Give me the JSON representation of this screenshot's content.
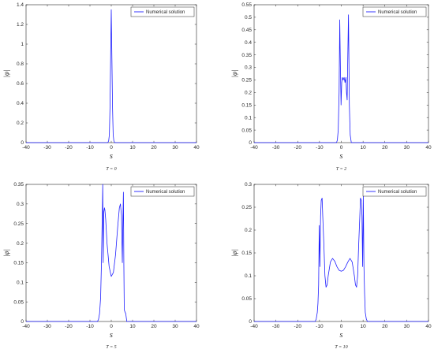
{
  "chart_data": [
    {
      "type": "line",
      "caption": "T = 0",
      "xlabel": "s",
      "ylabel": "|φ|",
      "xlim": [
        -40,
        40
      ],
      "ylim": [
        0,
        1.4
      ],
      "xticks": [
        "-40",
        "-30",
        "-20",
        "-10",
        "0",
        "10",
        "20",
        "30",
        "40"
      ],
      "yticks": [
        "0",
        "0.2",
        "0.4",
        "0.6",
        "0.8",
        "1",
        "1.2",
        "1.4"
      ],
      "legend_position": "top-right",
      "series": [
        {
          "name": "Numerical solution",
          "color": "#1f1fff",
          "x": [
            -40,
            -1.6,
            -1.2,
            -0.9,
            -0.6,
            -0.3,
            0.0,
            0.3,
            0.6,
            0.9,
            1.2,
            1.6,
            40
          ],
          "y": [
            0,
            0,
            0.02,
            0.08,
            0.35,
            0.85,
            1.35,
            0.85,
            0.35,
            0.08,
            0.02,
            0,
            0
          ]
        }
      ]
    },
    {
      "type": "line",
      "caption": "T = 2",
      "xlabel": "s",
      "ylabel": "|φ|",
      "xlim": [
        -40,
        40
      ],
      "ylim": [
        0,
        0.55
      ],
      "xticks": [
        "-40",
        "-30",
        "-20",
        "-10",
        "0",
        "10",
        "20",
        "30",
        "40"
      ],
      "yticks": [
        "0",
        "0.05",
        "0.1",
        "0.15",
        "0.2",
        "0.25",
        "0.3",
        "0.35",
        "0.4",
        "0.45",
        "0.5",
        "0.55"
      ],
      "legend_position": "top-right",
      "series": [
        {
          "name": "Numerical solution",
          "color": "#1f1fff",
          "x": [
            -40,
            -2.2,
            -1.8,
            -1.4,
            -1.0,
            -0.7,
            -0.4,
            -0.1,
            0.2,
            0.5,
            0.9,
            1.3,
            1.7,
            2.1,
            2.4,
            2.7,
            3.0,
            3.3,
            3.7,
            4.1,
            4.6,
            40
          ],
          "y": [
            0,
            0,
            0.01,
            0.05,
            0.2,
            0.49,
            0.3,
            0.15,
            0.24,
            0.26,
            0.25,
            0.26,
            0.24,
            0.26,
            0.2,
            0.17,
            0.35,
            0.51,
            0.15,
            0.03,
            0,
            0
          ]
        }
      ]
    },
    {
      "type": "line",
      "caption": "T = 5",
      "xlabel": "s",
      "ylabel": "|φ|",
      "xlim": [
        -40,
        40
      ],
      "ylim": [
        0,
        0.35
      ],
      "xticks": [
        "-40",
        "-30",
        "-20",
        "-10",
        "0",
        "10",
        "20",
        "30",
        "40"
      ],
      "yticks": [
        "0",
        "0.05",
        "0.1",
        "0.15",
        "0.2",
        "0.25",
        "0.3",
        "0.35"
      ],
      "legend_position": "top-right",
      "series": [
        {
          "name": "Numerical solution",
          "color": "#1f1fff",
          "x": [
            -40,
            -6.5,
            -6,
            -5.5,
            -5,
            -4.6,
            -4.3,
            -4.0,
            -3.8,
            -3.5,
            -3.2,
            -3.0,
            -2.6,
            -2.0,
            -1.0,
            0.0,
            1.0,
            2.0,
            3.0,
            3.8,
            4.3,
            4.8,
            5.2,
            5.5,
            5.7,
            5.9,
            6.1,
            6.4,
            6.8,
            7.3,
            40
          ],
          "y": [
            0,
            0,
            0.005,
            0.02,
            0.06,
            0.15,
            0.25,
            0.35,
            0.15,
            0.28,
            0.29,
            0.285,
            0.26,
            0.2,
            0.14,
            0.115,
            0.125,
            0.17,
            0.24,
            0.29,
            0.3,
            0.27,
            0.15,
            0.27,
            0.33,
            0.15,
            0.03,
            0.025,
            0.02,
            0,
            0
          ]
        }
      ]
    },
    {
      "type": "line",
      "caption": "T = 10",
      "xlabel": "s",
      "ylabel": "|φ|",
      "xlim": [
        -40,
        40
      ],
      "ylim": [
        0,
        0.3
      ],
      "xticks": [
        "-40",
        "-30",
        "-20",
        "-10",
        "0",
        "10",
        "20",
        "30",
        "40"
      ],
      "yticks": [
        "0",
        "0.05",
        "0.1",
        "0.15",
        "0.2",
        "0.25",
        "0.3"
      ],
      "legend_position": "top-right",
      "series": [
        {
          "name": "Numerical solution",
          "color": "#1f1fff",
          "x": [
            -40,
            -12,
            -11.5,
            -11,
            -10.7,
            -10.4,
            -10.1,
            -9.8,
            -9.5,
            -9.2,
            -8.8,
            -8.5,
            -8.0,
            -7.5,
            -7.0,
            -6.5,
            -6.0,
            -5.0,
            -4.0,
            -3.0,
            -2.0,
            -1.0,
            0.0,
            1.0,
            2.0,
            3.0,
            4.0,
            5.0,
            6.0,
            6.5,
            7.0,
            7.5,
            8.0,
            8.5,
            8.8,
            9.2,
            9.5,
            9.8,
            10.1,
            10.4,
            10.7,
            11.0,
            11.5,
            12,
            40
          ],
          "y": [
            0,
            0,
            0.005,
            0.02,
            0.04,
            0.08,
            0.21,
            0.12,
            0.23,
            0.265,
            0.27,
            0.23,
            0.17,
            0.1,
            0.075,
            0.08,
            0.1,
            0.13,
            0.138,
            0.132,
            0.12,
            0.112,
            0.11,
            0.112,
            0.12,
            0.13,
            0.138,
            0.13,
            0.1,
            0.08,
            0.075,
            0.1,
            0.17,
            0.23,
            0.27,
            0.265,
            0.23,
            0.12,
            0.275,
            0.12,
            0.06,
            0.02,
            0.005,
            0,
            0
          ]
        }
      ]
    }
  ]
}
